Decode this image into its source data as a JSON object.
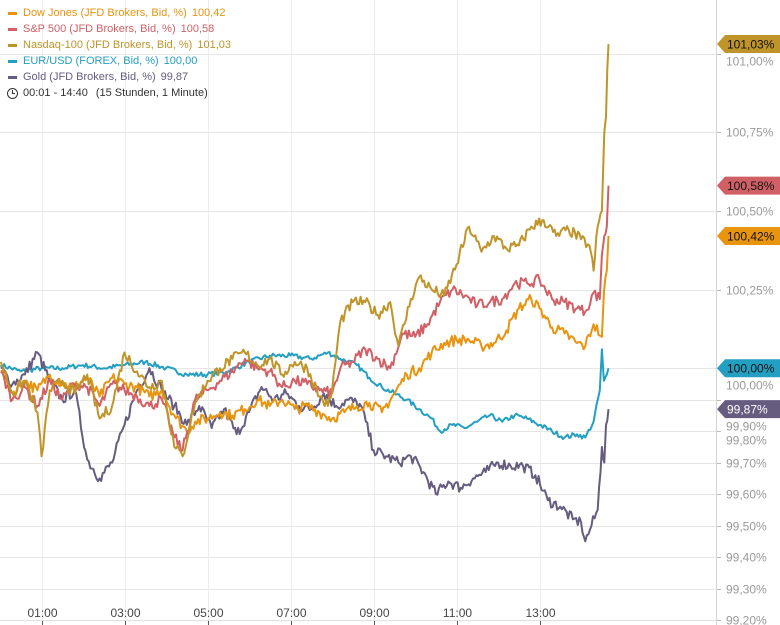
{
  "chart_data": {
    "type": "line",
    "title": "",
    "xlabel": "",
    "ylabel": "",
    "time_range": "00:01 - 14:40",
    "time_span": "(15 Stunden, 1 Minute)",
    "x_ticks": [
      "01:00",
      "03:00",
      "05:00",
      "07:00",
      "09:00",
      "11:00",
      "13:00"
    ],
    "x_tick_hours": [
      1,
      3,
      5,
      7,
      9,
      11,
      13
    ],
    "xlim_hours": [
      0.0,
      17.25
    ],
    "ylim": [
      99.2,
      101.17
    ],
    "y_ticks": [
      {
        "value": 101.0,
        "label": "101,00%"
      },
      {
        "value": 100.75,
        "label": "100,75%"
      },
      {
        "value": 100.5,
        "label": "100,50%"
      },
      {
        "value": 100.25,
        "label": "100,25%"
      },
      {
        "value": 100.0,
        "label": "100,00%"
      },
      {
        "value": 99.9,
        "label": "99,90%"
      },
      {
        "value": 99.8,
        "label": "99,80%"
      },
      {
        "value": 99.7,
        "label": "99,70%"
      },
      {
        "value": 99.6,
        "label": "99,60%"
      },
      {
        "value": 99.5,
        "label": "99,50%"
      },
      {
        "value": 99.4,
        "label": "99,40%"
      },
      {
        "value": 99.3,
        "label": "99,30%"
      },
      {
        "value": 99.2,
        "label": "99,20%"
      }
    ],
    "grid": true,
    "legend_position": "top-left",
    "series": [
      {
        "name": "Dow Jones (JFD Brokers, Bid, %)",
        "last": "100,42",
        "badge": "100,42%",
        "last_value": 100.42,
        "color": "#e8940f",
        "points": [
          [
            0.02,
            99.99
          ],
          [
            0.3,
            99.92
          ],
          [
            0.6,
            99.96
          ],
          [
            0.9,
            99.93
          ],
          [
            1.2,
            99.98
          ],
          [
            1.5,
            99.95
          ],
          [
            1.8,
            99.94
          ],
          [
            2.1,
            99.97
          ],
          [
            2.4,
            99.91
          ],
          [
            2.7,
            99.97
          ],
          [
            3.0,
            99.95
          ],
          [
            3.3,
            99.94
          ],
          [
            3.6,
            99.91
          ],
          [
            3.9,
            99.93
          ],
          [
            4.2,
            99.85
          ],
          [
            4.5,
            99.8
          ],
          [
            4.7,
            99.83
          ],
          [
            5.0,
            99.84
          ],
          [
            5.3,
            99.86
          ],
          [
            5.6,
            99.85
          ],
          [
            5.9,
            99.87
          ],
          [
            6.2,
            99.9
          ],
          [
            6.5,
            99.88
          ],
          [
            6.8,
            99.9
          ],
          [
            7.1,
            99.87
          ],
          [
            7.4,
            99.88
          ],
          [
            7.7,
            99.86
          ],
          [
            8.0,
            99.84
          ],
          [
            8.3,
            99.86
          ],
          [
            8.6,
            99.88
          ],
          [
            8.9,
            99.89
          ],
          [
            9.2,
            99.86
          ],
          [
            9.5,
            99.92
          ],
          [
            9.8,
            99.98
          ],
          [
            10.1,
            100.0
          ],
          [
            10.4,
            100.05
          ],
          [
            10.7,
            100.08
          ],
          [
            11.0,
            100.09
          ],
          [
            11.3,
            100.09
          ],
          [
            11.6,
            100.07
          ],
          [
            11.9,
            100.08
          ],
          [
            12.2,
            100.12
          ],
          [
            12.5,
            100.19
          ],
          [
            12.8,
            100.22
          ],
          [
            13.0,
            100.19
          ],
          [
            13.3,
            100.13
          ],
          [
            13.6,
            100.11
          ],
          [
            13.9,
            100.08
          ],
          [
            14.1,
            100.07
          ],
          [
            14.3,
            100.14
          ],
          [
            14.5,
            100.1
          ],
          [
            14.55,
            100.24
          ],
          [
            14.62,
            100.31
          ],
          [
            14.66,
            100.42
          ]
        ]
      },
      {
        "name": "S&P 500 (JFD Brokers, Bid, %)",
        "last": "100,58",
        "badge": "100,58%",
        "last_value": 100.58,
        "color": "#d06065",
        "points": [
          [
            0.02,
            99.99
          ],
          [
            0.3,
            99.9
          ],
          [
            0.6,
            99.94
          ],
          [
            0.9,
            99.88
          ],
          [
            1.2,
            99.96
          ],
          [
            1.5,
            99.9
          ],
          [
            1.8,
            99.95
          ],
          [
            2.1,
            99.94
          ],
          [
            2.4,
            99.88
          ],
          [
            2.7,
            99.95
          ],
          [
            3.0,
            99.93
          ],
          [
            3.3,
            99.91
          ],
          [
            3.6,
            99.88
          ],
          [
            3.9,
            99.9
          ],
          [
            4.2,
            99.78
          ],
          [
            4.4,
            99.74
          ],
          [
            4.7,
            99.9
          ],
          [
            5.0,
            99.93
          ],
          [
            5.3,
            99.96
          ],
          [
            5.6,
            99.99
          ],
          [
            5.9,
            100.03
          ],
          [
            6.2,
            100.0
          ],
          [
            6.5,
            99.99
          ],
          [
            6.8,
            99.94
          ],
          [
            7.1,
            99.96
          ],
          [
            7.4,
            99.95
          ],
          [
            7.7,
            99.93
          ],
          [
            8.0,
            99.92
          ],
          [
            8.2,
            100.0
          ],
          [
            8.5,
            100.02
          ],
          [
            8.8,
            100.06
          ],
          [
            9.1,
            100.03
          ],
          [
            9.4,
            100.0
          ],
          [
            9.7,
            100.11
          ],
          [
            10.0,
            100.1
          ],
          [
            10.3,
            100.14
          ],
          [
            10.6,
            100.21
          ],
          [
            10.9,
            100.25
          ],
          [
            11.2,
            100.23
          ],
          [
            11.5,
            100.2
          ],
          [
            11.8,
            100.21
          ],
          [
            12.1,
            100.22
          ],
          [
            12.4,
            100.27
          ],
          [
            12.7,
            100.27
          ],
          [
            13.0,
            100.28
          ],
          [
            13.3,
            100.22
          ],
          [
            13.6,
            100.21
          ],
          [
            13.9,
            100.19
          ],
          [
            14.1,
            100.18
          ],
          [
            14.3,
            100.24
          ],
          [
            14.45,
            100.22
          ],
          [
            14.5,
            100.36
          ],
          [
            14.56,
            100.42
          ],
          [
            14.62,
            100.45
          ],
          [
            14.66,
            100.58
          ]
        ]
      },
      {
        "name": "Nasdaq-100 (JFD Brokers, Bid, %)",
        "last": "101,03",
        "badge": "101,03%",
        "last_value": 101.03,
        "color": "#bf952a",
        "points": [
          [
            0.02,
            100.02
          ],
          [
            0.3,
            99.92
          ],
          [
            0.6,
            99.96
          ],
          [
            0.9,
            99.86
          ],
          [
            1.0,
            99.72
          ],
          [
            1.2,
            99.93
          ],
          [
            1.5,
            99.96
          ],
          [
            1.8,
            99.92
          ],
          [
            2.1,
            99.98
          ],
          [
            2.4,
            99.84
          ],
          [
            2.7,
            99.88
          ],
          [
            3.0,
            100.05
          ],
          [
            3.3,
            99.99
          ],
          [
            3.6,
            99.94
          ],
          [
            3.9,
            99.96
          ],
          [
            4.2,
            99.75
          ],
          [
            4.4,
            99.72
          ],
          [
            4.7,
            99.89
          ],
          [
            5.0,
            99.96
          ],
          [
            5.3,
            100.0
          ],
          [
            5.6,
            100.03
          ],
          [
            5.9,
            100.05
          ],
          [
            6.2,
            100.01
          ],
          [
            6.5,
            100.03
          ],
          [
            6.8,
            99.98
          ],
          [
            7.1,
            100.02
          ],
          [
            7.4,
            100.0
          ],
          [
            7.7,
            99.91
          ],
          [
            7.9,
            99.88
          ],
          [
            8.0,
            99.93
          ],
          [
            8.2,
            100.15
          ],
          [
            8.5,
            100.21
          ],
          [
            8.8,
            100.21
          ],
          [
            9.1,
            100.17
          ],
          [
            9.4,
            100.21
          ],
          [
            9.6,
            100.07
          ],
          [
            9.9,
            100.22
          ],
          [
            10.1,
            100.29
          ],
          [
            10.4,
            100.25
          ],
          [
            10.7,
            100.23
          ],
          [
            11.0,
            100.33
          ],
          [
            11.3,
            100.45
          ],
          [
            11.6,
            100.37
          ],
          [
            11.9,
            100.42
          ],
          [
            12.2,
            100.38
          ],
          [
            12.5,
            100.39
          ],
          [
            12.8,
            100.45
          ],
          [
            13.1,
            100.47
          ],
          [
            13.4,
            100.42
          ],
          [
            13.7,
            100.44
          ],
          [
            14.0,
            100.41
          ],
          [
            14.2,
            100.39
          ],
          [
            14.3,
            100.31
          ],
          [
            14.4,
            100.45
          ],
          [
            14.5,
            100.5
          ],
          [
            14.56,
            100.75
          ],
          [
            14.6,
            100.8
          ],
          [
            14.63,
            100.95
          ],
          [
            14.66,
            101.03
          ]
        ]
      },
      {
        "name": "EUR/USD (FOREX, Bid, %)",
        "last": "100,00",
        "badge": "100,00%",
        "last_value": 100.0,
        "color": "#239fc2",
        "points": [
          [
            0.02,
            100.01
          ],
          [
            0.5,
            99.99
          ],
          [
            1.0,
            100.0
          ],
          [
            1.5,
            100.0
          ],
          [
            2.0,
            100.01
          ],
          [
            2.5,
            100.0
          ],
          [
            3.0,
            100.01
          ],
          [
            3.5,
            100.02
          ],
          [
            4.0,
            100.0
          ],
          [
            4.5,
            99.98
          ],
          [
            5.0,
            99.98
          ],
          [
            5.5,
            99.99
          ],
          [
            6.0,
            100.02
          ],
          [
            6.5,
            100.04
          ],
          [
            7.0,
            100.04
          ],
          [
            7.5,
            100.03
          ],
          [
            7.9,
            100.05
          ],
          [
            8.2,
            100.03
          ],
          [
            8.6,
            100.01
          ],
          [
            8.9,
            99.97
          ],
          [
            9.2,
            99.94
          ],
          [
            9.5,
            99.92
          ],
          [
            9.8,
            99.9
          ],
          [
            10.1,
            99.87
          ],
          [
            10.4,
            99.84
          ],
          [
            10.6,
            99.8
          ],
          [
            10.9,
            99.82
          ],
          [
            11.2,
            99.81
          ],
          [
            11.5,
            99.83
          ],
          [
            11.8,
            99.85
          ],
          [
            12.1,
            99.83
          ],
          [
            12.4,
            99.85
          ],
          [
            12.7,
            99.84
          ],
          [
            13.0,
            99.82
          ],
          [
            13.3,
            99.8
          ],
          [
            13.6,
            99.78
          ],
          [
            13.9,
            99.79
          ],
          [
            14.1,
            99.78
          ],
          [
            14.3,
            99.83
          ],
          [
            14.45,
            99.93
          ],
          [
            14.5,
            100.06
          ],
          [
            14.55,
            99.96
          ],
          [
            14.62,
            99.98
          ],
          [
            14.66,
            100.0
          ]
        ]
      },
      {
        "name": "Gold (JFD Brokers, Bid, %)",
        "last": "99,87",
        "badge": "99,87%",
        "last_value": 99.87,
        "color": "#655c80",
        "points": [
          [
            0.02,
            100.0
          ],
          [
            0.3,
            99.95
          ],
          [
            0.6,
            99.98
          ],
          [
            0.9,
            100.05
          ],
          [
            1.2,
            99.96
          ],
          [
            1.5,
            99.9
          ],
          [
            1.8,
            99.93
          ],
          [
            2.1,
            99.71
          ],
          [
            2.4,
            99.65
          ],
          [
            2.7,
            99.7
          ],
          [
            3.0,
            99.82
          ],
          [
            3.3,
            99.93
          ],
          [
            3.6,
            100.0
          ],
          [
            3.9,
            99.93
          ],
          [
            4.2,
            99.88
          ],
          [
            4.5,
            99.82
          ],
          [
            4.8,
            99.88
          ],
          [
            5.1,
            99.81
          ],
          [
            5.4,
            99.87
          ],
          [
            5.7,
            99.79
          ],
          [
            6.0,
            99.86
          ],
          [
            6.3,
            99.94
          ],
          [
            6.6,
            99.9
          ],
          [
            6.9,
            99.92
          ],
          [
            7.2,
            99.88
          ],
          [
            7.5,
            99.87
          ],
          [
            7.8,
            99.92
          ],
          [
            8.1,
            99.88
          ],
          [
            8.4,
            99.9
          ],
          [
            8.7,
            99.88
          ],
          [
            9.0,
            99.74
          ],
          [
            9.3,
            99.72
          ],
          [
            9.6,
            99.7
          ],
          [
            9.9,
            99.72
          ],
          [
            10.2,
            99.67
          ],
          [
            10.5,
            99.6
          ],
          [
            10.8,
            99.64
          ],
          [
            11.1,
            99.62
          ],
          [
            11.4,
            99.65
          ],
          [
            11.7,
            99.67
          ],
          [
            12.0,
            99.7
          ],
          [
            12.3,
            99.69
          ],
          [
            12.6,
            99.69
          ],
          [
            12.9,
            99.66
          ],
          [
            13.2,
            99.58
          ],
          [
            13.5,
            99.56
          ],
          [
            13.8,
            99.52
          ],
          [
            14.0,
            99.51
          ],
          [
            14.1,
            99.45
          ],
          [
            14.25,
            99.5
          ],
          [
            14.4,
            99.55
          ],
          [
            14.5,
            99.75
          ],
          [
            14.56,
            99.7
          ],
          [
            14.6,
            99.82
          ],
          [
            14.66,
            99.87
          ]
        ]
      }
    ]
  }
}
